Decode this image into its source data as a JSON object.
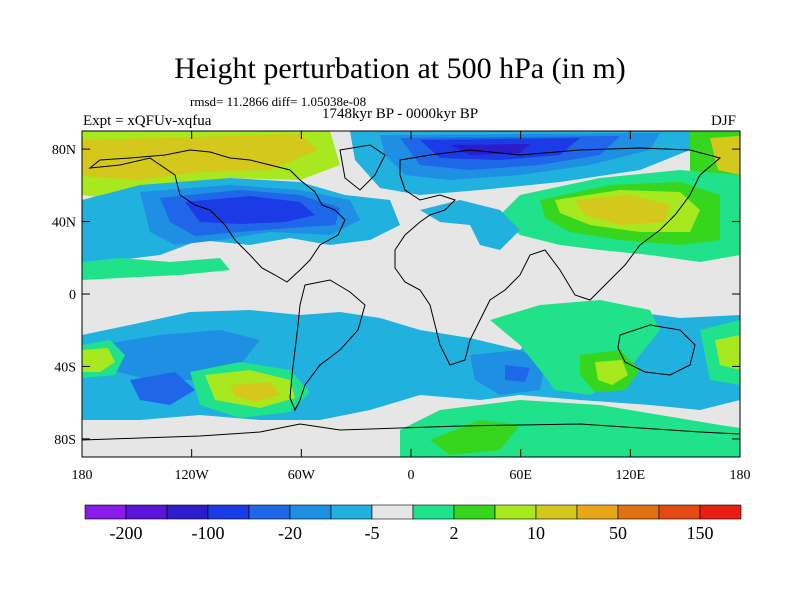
{
  "header": {
    "title": "Height perturbation at 500 hPa (in m)",
    "stats": "rmsd= 11.2866 diff= 1.05038e-08",
    "period": "1748kyr BP - 0000kyr BP",
    "experiment": "Expt = xQFUv-xqfua",
    "season": "DJF"
  },
  "map": {
    "projection": "cylindrical-equidistant",
    "lon_range": [
      -180,
      180
    ],
    "lat_range": [
      -90,
      90
    ],
    "lon_ticks": [
      {
        "value": -180,
        "label": "180"
      },
      {
        "value": -120,
        "label": "120W"
      },
      {
        "value": -60,
        "label": "60W"
      },
      {
        "value": 0,
        "label": "0"
      },
      {
        "value": 60,
        "label": "60E"
      },
      {
        "value": 120,
        "label": "120E"
      },
      {
        "value": 180,
        "label": "180"
      }
    ],
    "lat_ticks": [
      {
        "value": 80,
        "label": "80N"
      },
      {
        "value": 40,
        "label": "40N"
      },
      {
        "value": 0,
        "label": "0"
      },
      {
        "value": -40,
        "label": "40S"
      },
      {
        "value": -80,
        "label": "80S"
      }
    ]
  },
  "colorbar": {
    "colors": [
      "#8a1ae8",
      "#5a14d9",
      "#2c1ccc",
      "#1a3be6",
      "#1f67e8",
      "#1e8fe3",
      "#20b1df",
      "#e6e6e6",
      "#1fe28a",
      "#36d61e",
      "#a8e81f",
      "#d4c81c",
      "#e6a618",
      "#e07214",
      "#e44a14",
      "#e81e12"
    ],
    "labels": [
      {
        "index": 1,
        "text": "-200"
      },
      {
        "index": 3,
        "text": "-100"
      },
      {
        "index": 5,
        "text": "-20"
      },
      {
        "index": 7,
        "text": "-5"
      },
      {
        "index": 9,
        "text": "2"
      },
      {
        "index": 11,
        "text": "10"
      },
      {
        "index": 13,
        "text": "50"
      },
      {
        "index": 15,
        "text": "150"
      }
    ]
  },
  "field_colors": {
    "neutral": "#e6e6e6",
    "cyan": "#20b1df",
    "lightblue": "#1e8fe3",
    "blue": "#1f67e8",
    "darkblue": "#1a3be6",
    "indigo": "#2c1ccc",
    "green": "#1fe28a",
    "midgreen": "#36d61e",
    "yellowgreen": "#a8e81f",
    "olive": "#d4c81c",
    "orange": "#e6a618"
  }
}
